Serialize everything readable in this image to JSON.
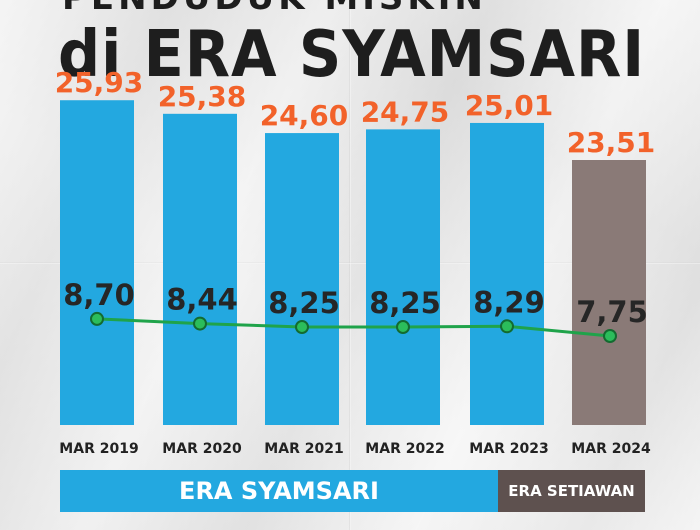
{
  "title": {
    "line1": "PENDUDUK MISKIN",
    "line2": "di ERA SYAMSARI"
  },
  "chart_data": {
    "type": "bar",
    "categories": [
      "MAR 2019",
      "MAR 2020",
      "MAR 2021",
      "MAR 2022",
      "MAR 2023",
      "MAR 2024"
    ],
    "series": [
      {
        "type": "bar",
        "values": [
          25.93,
          25.38,
          24.6,
          24.75,
          25.01,
          23.51
        ],
        "labels": [
          "25,93",
          "25,38",
          "24,60",
          "24,75",
          "25,01",
          "23,51"
        ]
      },
      {
        "type": "line",
        "values": [
          8.7,
          8.44,
          8.25,
          8.25,
          8.29,
          7.75
        ],
        "labels": [
          "8,70",
          "8,44",
          "8,25",
          "8,25",
          "8,29",
          "7,75"
        ]
      }
    ],
    "bar_colors": [
      "#23a8e0",
      "#23a8e0",
      "#23a8e0",
      "#23a8e0",
      "#23a8e0",
      "#8a7a77"
    ],
    "bar_label_color": "#f2622a",
    "line_color": "#1fa34a",
    "line_label_color": "#262626",
    "grid": false
  },
  "eras": [
    {
      "label": "ERA SYAMSARI",
      "color": "#23a8e0"
    },
    {
      "label": "ERA SETIAWAN",
      "color": "#5e514f"
    }
  ]
}
